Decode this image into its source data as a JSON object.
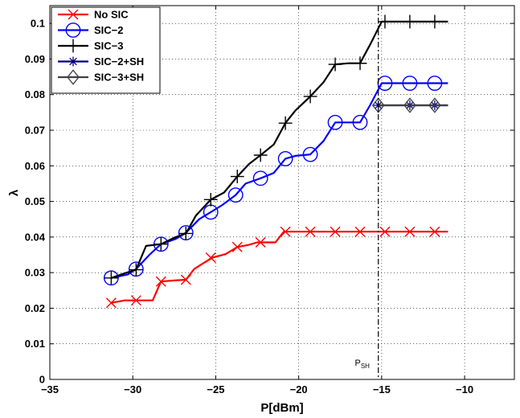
{
  "chart_data": {
    "type": "line",
    "xlabel": "P[dBm]",
    "ylabel": "λ",
    "xlim": [
      -35,
      -7
    ],
    "ylim": [
      0,
      0.105
    ],
    "xticks": [
      -35,
      -30,
      -25,
      -20,
      -15,
      -10
    ],
    "yticks": [
      0,
      0.01,
      0.02,
      0.03,
      0.04,
      0.05,
      0.06,
      0.07,
      0.08,
      0.09,
      0.1
    ],
    "xtick_labels": [
      "−35",
      "−30",
      "−25",
      "−20",
      "−15",
      "−10"
    ],
    "ytick_labels": [
      "0",
      "0.01",
      "0.02",
      "0.03",
      "0.04",
      "0.05",
      "0.06",
      "0.07",
      "0.08",
      "0.09",
      "0.1"
    ],
    "grid": true,
    "legend_position": "top-left",
    "annotation": {
      "label_main": "P",
      "label_sub": "SH",
      "x": -15.2,
      "style": "dash-dot vertical line"
    },
    "series": [
      {
        "name": "No SIC",
        "color": "#ff0000",
        "marker": "x",
        "x": [
          -31.3,
          -30.5,
          -29.8,
          -28.8,
          -28.3,
          -27.5,
          -26.8,
          -26.3,
          -25.8,
          -25.2,
          -24.4,
          -23.7,
          -23.0,
          -22.5,
          -21.4,
          -20.9,
          -19.5,
          -18.5,
          -17.3,
          -16.0,
          -14.8,
          -13.4,
          -11.8,
          -11.0
        ],
        "y": [
          0.0215,
          0.0222,
          0.0222,
          0.0222,
          0.0275,
          0.0278,
          0.028,
          0.031,
          0.0325,
          0.0342,
          0.0352,
          0.0372,
          0.0378,
          0.0385,
          0.0385,
          0.0415,
          0.0415,
          0.0415,
          0.0415,
          0.0415,
          0.0415,
          0.0415,
          0.0415,
          0.0415
        ],
        "marker_x": [
          -31.3,
          -29.8,
          -28.3,
          -26.8,
          -25.3,
          -23.7,
          -22.3,
          -20.8,
          -19.3,
          -17.8,
          -16.3,
          -14.8,
          -13.3,
          -11.8
        ],
        "marker_y": [
          0.0215,
          0.0222,
          0.0275,
          0.028,
          0.0342,
          0.0372,
          0.0385,
          0.0415,
          0.0415,
          0.0415,
          0.0415,
          0.0415,
          0.0415,
          0.0415
        ]
      },
      {
        "name": "SIC−2",
        "color": "#0000ff",
        "marker": "o",
        "x": [
          -31.3,
          -30.3,
          -29.8,
          -29.0,
          -28.3,
          -27.4,
          -26.8,
          -26.0,
          -25.3,
          -24.6,
          -23.8,
          -23.2,
          -22.3,
          -21.5,
          -20.8,
          -20.2,
          -19.3,
          -18.5,
          -17.8,
          -17.0,
          -16.3,
          -15.7,
          -15.0,
          -14.8,
          -13.3,
          -11.8,
          -11.0
        ],
        "y": [
          0.0285,
          0.0295,
          0.031,
          0.035,
          0.038,
          0.0395,
          0.0412,
          0.045,
          0.047,
          0.049,
          0.0518,
          0.055,
          0.0565,
          0.058,
          0.062,
          0.0628,
          0.0632,
          0.067,
          0.0722,
          0.0722,
          0.0722,
          0.077,
          0.0832,
          0.0832,
          0.0832,
          0.0832,
          0.0832
        ],
        "marker_x": [
          -31.3,
          -29.8,
          -28.3,
          -26.8,
          -25.3,
          -23.8,
          -22.3,
          -20.8,
          -19.3,
          -17.8,
          -16.3,
          -14.8,
          -13.3,
          -11.8
        ],
        "marker_y": [
          0.0285,
          0.031,
          0.038,
          0.0412,
          0.047,
          0.0518,
          0.0565,
          0.062,
          0.0632,
          0.0722,
          0.0722,
          0.0832,
          0.0832,
          0.0832
        ]
      },
      {
        "name": "SIC−3",
        "color": "#000000",
        "marker": "+",
        "x": [
          -31.3,
          -30.5,
          -29.8,
          -29.2,
          -28.3,
          -27.5,
          -26.8,
          -26.2,
          -25.3,
          -24.5,
          -23.7,
          -23.0,
          -22.3,
          -21.5,
          -20.8,
          -20.2,
          -19.3,
          -18.5,
          -17.8,
          -17.0,
          -16.3,
          -15.7,
          -15.0,
          -14.8,
          -13.3,
          -11.8,
          -11.0
        ],
        "y": [
          0.0285,
          0.0298,
          0.0308,
          0.0375,
          0.038,
          0.0398,
          0.041,
          0.046,
          0.0505,
          0.0525,
          0.057,
          0.0605,
          0.063,
          0.066,
          0.072,
          0.0755,
          0.0795,
          0.0835,
          0.0885,
          0.0888,
          0.0888,
          0.094,
          0.1005,
          0.1005,
          0.1005,
          0.1005,
          0.1005
        ],
        "marker_x": [
          -31.3,
          -29.8,
          -28.3,
          -26.8,
          -25.3,
          -23.7,
          -22.3,
          -20.8,
          -19.3,
          -17.8,
          -16.3,
          -14.8,
          -13.3,
          -11.8
        ],
        "marker_y": [
          0.0285,
          0.0308,
          0.038,
          0.041,
          0.0505,
          0.057,
          0.063,
          0.072,
          0.0795,
          0.0885,
          0.0888,
          0.1005,
          0.1005,
          0.1005
        ]
      },
      {
        "name": "SIC−2+SH",
        "color": "#000080",
        "marker": "*",
        "x": [
          -15.2,
          -14.8,
          -13.3,
          -11.8,
          -11.0
        ],
        "y": [
          0.077,
          0.077,
          0.077,
          0.077,
          0.077
        ],
        "marker_x": [
          -15.2,
          -13.3,
          -11.8
        ],
        "marker_y": [
          0.077,
          0.077,
          0.077
        ]
      },
      {
        "name": "SIC−3+SH",
        "color": "#404040",
        "marker": "diamond",
        "x": [
          -15.2,
          -14.8,
          -13.3,
          -11.8,
          -11.0
        ],
        "y": [
          0.077,
          0.077,
          0.077,
          0.077,
          0.077
        ],
        "marker_x": [
          -15.2,
          -13.3,
          -11.8
        ],
        "marker_y": [
          0.077,
          0.077,
          0.077
        ]
      }
    ]
  }
}
